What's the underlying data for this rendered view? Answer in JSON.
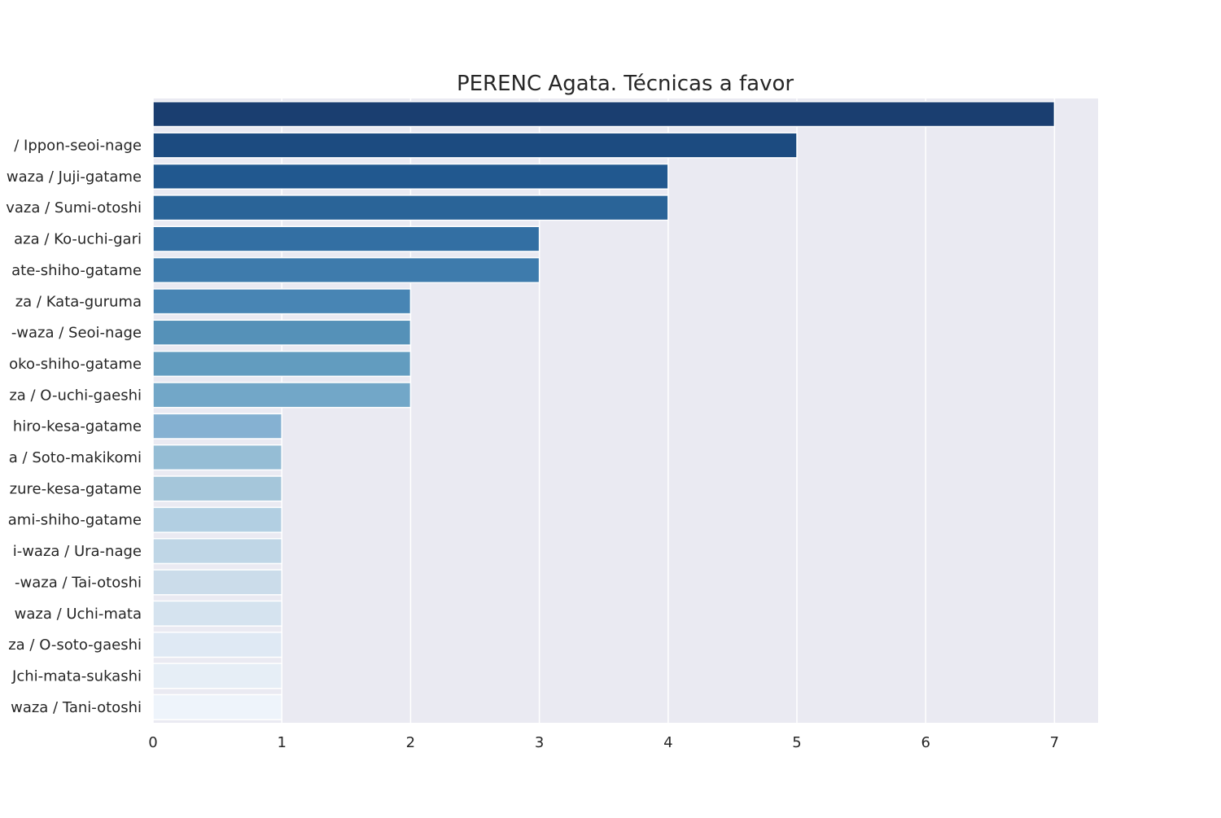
{
  "colors": {
    "plot_background": "#eaeaf2",
    "grid": "#ffffff",
    "text": "#262626",
    "bar_edge": "#ffffff"
  },
  "chart_data": {
    "type": "bar",
    "orientation": "horizontal",
    "title": "PERENC Agata. Técnicas a favor",
    "xlabel": "",
    "ylabel": "",
    "grid": true,
    "xlim": [
      0,
      7.35
    ],
    "xticks": [
      0,
      1,
      2,
      3,
      4,
      5,
      6,
      7
    ],
    "categories": [
      "",
      "/ Ippon-seoi-nage",
      "waza / Juji-gatame",
      "vaza / Sumi-otoshi",
      "aza / Ko-uchi-gari",
      "ate-shiho-gatame",
      "za / Kata-guruma",
      "-waza / Seoi-nage",
      "oko-shiho-gatame",
      "za / O-uchi-gaeshi",
      "hiro-kesa-gatame",
      "a / Soto-makikomi",
      "zure-kesa-gatame",
      "ami-shiho-gatame",
      "i-waza / Ura-nage",
      "-waza / Tai-otoshi",
      "waza / Uchi-mata",
      "za / O-soto-gaeshi",
      "Jchi-mata-sukashi",
      "waza / Tani-otoshi"
    ],
    "values": [
      7,
      5,
      4,
      4,
      3,
      3,
      2,
      2,
      2,
      2,
      1,
      1,
      1,
      1,
      1,
      1,
      1,
      1,
      1,
      1
    ],
    "bar_colors": [
      "#1a3e70",
      "#1c4b80",
      "#21588f",
      "#2a6498",
      "#336fa3",
      "#3e7bac",
      "#4885b4",
      "#5591b8",
      "#629cbf",
      "#72a7c8",
      "#85b1d2",
      "#95bdd5",
      "#a5c6da",
      "#b2cfe2",
      "#bfd6e6",
      "#cbdcea",
      "#d5e3ef",
      "#dfe9f4",
      "#e6eef6",
      "#eef4fb"
    ]
  }
}
